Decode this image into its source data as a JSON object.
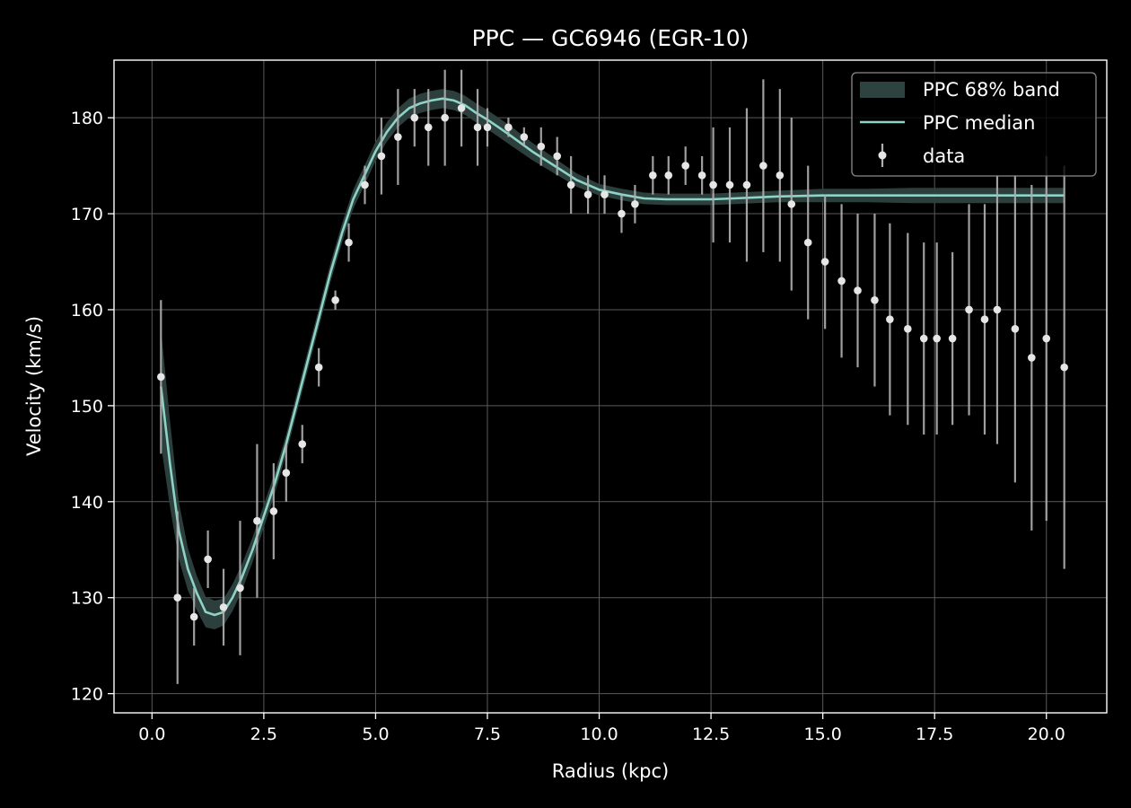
{
  "chart_data": {
    "type": "line",
    "title": "PPC — GC6946 (EGR-10)",
    "xlabel": "Radius (kpc)",
    "ylabel": "Velocity (km/s)",
    "xlim": [
      -0.85,
      21.35
    ],
    "ylim": [
      118,
      186
    ],
    "xticks": [
      0.0,
      2.5,
      5.0,
      7.5,
      10.0,
      12.5,
      15.0,
      17.5,
      20.0
    ],
    "xtick_labels": [
      "0.0",
      "2.5",
      "5.0",
      "7.5",
      "10.0",
      "12.5",
      "15.0",
      "17.5",
      "20.0"
    ],
    "yticks": [
      120,
      130,
      140,
      150,
      160,
      170,
      180
    ],
    "ytick_labels": [
      "120",
      "130",
      "140",
      "150",
      "160",
      "170",
      "180"
    ],
    "grid": true,
    "legend_position": "top-right",
    "legend": [
      {
        "label": "PPC 68% band",
        "kind": "band"
      },
      {
        "label": "PPC median",
        "kind": "line"
      },
      {
        "label": "data",
        "kind": "errorbar"
      }
    ],
    "colors": {
      "background": "#000000",
      "median": "#8dd3c7",
      "band": "#2e423f",
      "data": "#e6e6e6",
      "errorbar": "#b0b0b0",
      "grid": "#5a5a5a"
    },
    "data": {
      "name": "data",
      "x": [
        0.2,
        0.57,
        0.94,
        1.25,
        1.6,
        1.97,
        2.35,
        2.72,
        3.0,
        3.36,
        3.73,
        4.1,
        4.4,
        4.76,
        5.13,
        5.5,
        5.87,
        6.18,
        6.55,
        6.92,
        7.28,
        7.5,
        7.97,
        8.32,
        8.7,
        9.06,
        9.37,
        9.75,
        10.12,
        10.5,
        10.8,
        11.2,
        11.55,
        11.93,
        12.3,
        12.55,
        12.92,
        13.3,
        13.67,
        14.04,
        14.3,
        14.67,
        15.05,
        15.42,
        15.78,
        16.16,
        16.5,
        16.9,
        17.26,
        17.55,
        17.9,
        18.27,
        18.62,
        18.9,
        19.3,
        19.67,
        20.0,
        20.4
      ],
      "y": [
        153,
        130,
        128,
        134,
        129,
        131,
        138,
        139,
        143,
        146,
        154,
        161,
        167,
        173,
        176,
        178,
        180,
        179,
        180,
        181,
        179,
        179,
        179,
        178,
        177,
        176,
        173,
        172,
        172,
        170,
        171,
        174,
        174,
        175,
        174,
        173,
        173,
        173,
        175,
        174,
        171,
        167,
        165,
        163,
        162,
        161,
        159,
        158,
        157,
        157,
        157,
        160,
        159,
        160,
        158,
        155,
        157,
        154
      ],
      "yerr": [
        8,
        9,
        3,
        3,
        4,
        7,
        8,
        5,
        3,
        2,
        2,
        1,
        2,
        2,
        4,
        5,
        3,
        4,
        5,
        4,
        4,
        2,
        1,
        1,
        2,
        2,
        3,
        2,
        2,
        2,
        2,
        2,
        2,
        2,
        2,
        6,
        6,
        8,
        9,
        9,
        9,
        8,
        7,
        8,
        8,
        9,
        10,
        10,
        10,
        10,
        9,
        11,
        12,
        14,
        16,
        18,
        19,
        21
      ]
    },
    "median": {
      "name": "PPC median",
      "x": [
        0.2,
        0.4,
        0.6,
        0.8,
        1.0,
        1.2,
        1.4,
        1.6,
        1.8,
        2.0,
        2.25,
        2.5,
        2.75,
        3.0,
        3.25,
        3.5,
        3.75,
        4.0,
        4.25,
        4.5,
        4.75,
        5.0,
        5.25,
        5.5,
        5.75,
        6.0,
        6.25,
        6.5,
        6.75,
        7.0,
        7.25,
        7.5,
        7.75,
        8.0,
        8.5,
        9.0,
        9.5,
        10.0,
        10.5,
        11.0,
        11.5,
        12.0,
        12.5,
        13.0,
        13.5,
        14.0,
        15.0,
        16.0,
        17.0,
        18.0,
        19.0,
        20.0,
        20.4
      ],
      "y": [
        152,
        144,
        137,
        133,
        130.5,
        128.5,
        128.2,
        128.5,
        130,
        132,
        135,
        138.5,
        142,
        146,
        150.5,
        155,
        159.5,
        164,
        168,
        171.5,
        174,
        176.5,
        178.5,
        180,
        181,
        181.5,
        181.8,
        182,
        181.8,
        181.3,
        180.5,
        179.8,
        179,
        178.2,
        176.5,
        175,
        173.5,
        172.5,
        172,
        171.6,
        171.5,
        171.5,
        171.5,
        171.6,
        171.7,
        171.8,
        171.9,
        171.9,
        171.9,
        171.9,
        171.9,
        171.9,
        171.9
      ],
      "band_half_width": [
        6,
        4.5,
        3,
        2.2,
        1.8,
        1.6,
        1.5,
        1.4,
        1.4,
        1.4,
        1.3,
        1.2,
        1.1,
        1,
        1,
        1,
        1,
        1,
        1,
        1,
        1,
        1,
        1,
        1,
        1,
        1,
        1,
        1,
        1,
        1,
        1,
        1,
        1,
        1,
        0.9,
        0.8,
        0.7,
        0.6,
        0.6,
        0.6,
        0.6,
        0.6,
        0.6,
        0.6,
        0.6,
        0.6,
        0.7,
        0.7,
        0.8,
        0.8,
        0.8,
        0.8,
        0.8
      ]
    }
  }
}
